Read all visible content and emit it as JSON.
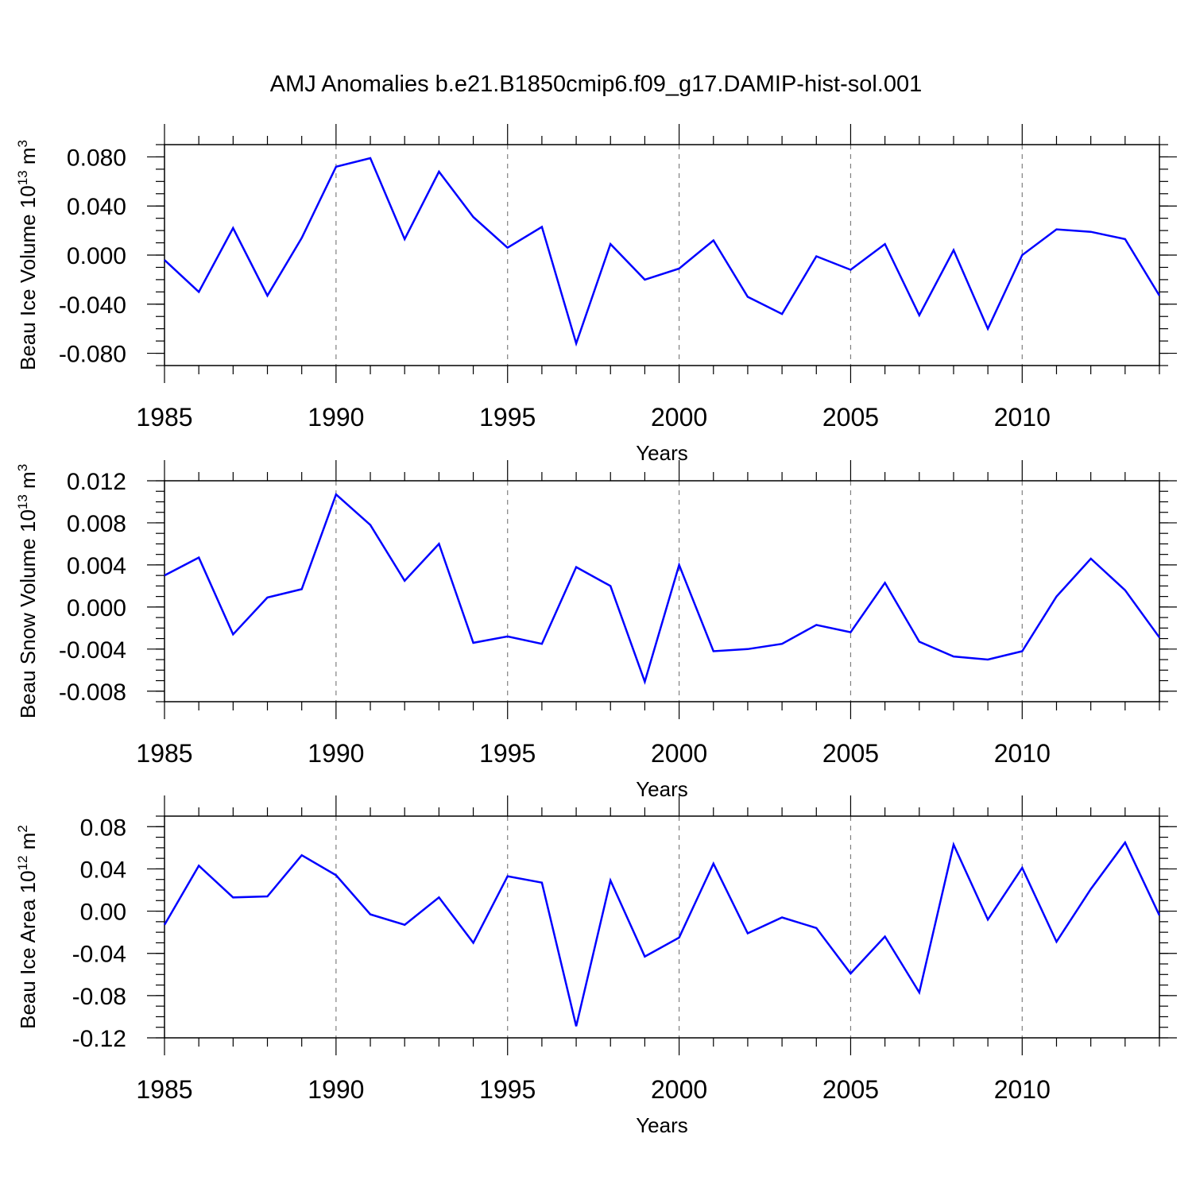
{
  "title": "AMJ Anomalies b.e21.B1850cmip6.f09_g17.DAMIP-hist-sol.001",
  "colors": {
    "line": "#0000ff",
    "axis": "#000000",
    "grid": "#808080"
  },
  "chart_data": [
    {
      "type": "line",
      "ylabel_main": "Beau Ice Volume 10",
      "ylabel_sup": "13",
      "ylabel_unit": " m",
      "ylabel_unit_sup": "3",
      "xlabel": "Years",
      "xlim": [
        1985,
        2014
      ],
      "ylim": [
        -0.09,
        0.09
      ],
      "yticks": [
        -0.08,
        -0.04,
        0.0,
        0.04,
        0.08
      ],
      "ytick_labels": [
        "-0.080",
        "-0.040",
        "0.000",
        "0.040",
        "0.080"
      ],
      "yminor_step": 0.01,
      "xticks": [
        1985,
        1990,
        1995,
        2000,
        2005,
        2010
      ],
      "xtick_labels": [
        "1985",
        "1990",
        "1995",
        "2000",
        "2005",
        "2010"
      ],
      "grid_x": [
        1990,
        1995,
        2000,
        2005,
        2010
      ],
      "x": [
        1985,
        1986,
        1987,
        1988,
        1989,
        1990,
        1991,
        1992,
        1993,
        1994,
        1995,
        1996,
        1997,
        1998,
        1999,
        2000,
        2001,
        2002,
        2003,
        2004,
        2005,
        2006,
        2007,
        2008,
        2009,
        2010,
        2011,
        2012,
        2013,
        2014
      ],
      "series": [
        {
          "name": "Beau Ice Volume",
          "values": [
            -0.004,
            -0.03,
            0.022,
            -0.033,
            0.014,
            0.072,
            0.079,
            0.013,
            0.068,
            0.031,
            0.006,
            0.023,
            -0.072,
            0.009,
            -0.02,
            -0.011,
            0.012,
            -0.034,
            -0.048,
            -0.001,
            -0.012,
            0.009,
            -0.049,
            0.004,
            -0.06,
            0.0,
            0.021,
            0.019,
            0.013,
            -0.033
          ]
        }
      ]
    },
    {
      "type": "line",
      "ylabel_main": "Beau Snow Volume 10",
      "ylabel_sup": "13",
      "ylabel_unit": " m",
      "ylabel_unit_sup": "3",
      "xlabel": "Years",
      "xlim": [
        1985,
        2014
      ],
      "ylim": [
        -0.009,
        0.012
      ],
      "yticks": [
        -0.008,
        -0.004,
        0.0,
        0.004,
        0.008,
        0.012
      ],
      "ytick_labels": [
        "-0.008",
        "-0.004",
        "0.000",
        "0.004",
        "0.008",
        "0.012"
      ],
      "yminor_step": 0.001,
      "xticks": [
        1985,
        1990,
        1995,
        2000,
        2005,
        2010
      ],
      "xtick_labels": [
        "1985",
        "1990",
        "1995",
        "2000",
        "2005",
        "2010"
      ],
      "grid_x": [
        1990,
        1995,
        2000,
        2005,
        2010
      ],
      "x": [
        1985,
        1986,
        1987,
        1988,
        1989,
        1990,
        1991,
        1992,
        1993,
        1994,
        1995,
        1996,
        1997,
        1998,
        1999,
        2000,
        2001,
        2002,
        2003,
        2004,
        2005,
        2006,
        2007,
        2008,
        2009,
        2010,
        2011,
        2012,
        2013,
        2014
      ],
      "series": [
        {
          "name": "Beau Snow Volume",
          "values": [
            0.003,
            0.0047,
            -0.0026,
            0.0009,
            0.0017,
            0.0107,
            0.0078,
            0.0025,
            0.006,
            -0.0034,
            -0.0028,
            -0.0035,
            0.0038,
            0.002,
            -0.0071,
            0.004,
            -0.0042,
            -0.004,
            -0.0035,
            -0.0017,
            -0.0024,
            0.0023,
            -0.0033,
            -0.0047,
            -0.005,
            -0.0042,
            0.001,
            0.0046,
            0.0016,
            -0.0029
          ]
        }
      ]
    },
    {
      "type": "line",
      "ylabel_main": "Beau Ice Area 10",
      "ylabel_sup": "12",
      "ylabel_unit": " m",
      "ylabel_unit_sup": "2",
      "xlabel": "Years",
      "xlim": [
        1985,
        2014
      ],
      "ylim": [
        -0.12,
        0.09
      ],
      "yticks": [
        -0.12,
        -0.08,
        -0.04,
        0.0,
        0.04,
        0.08
      ],
      "ytick_labels": [
        "-0.12",
        "-0.08",
        "-0.04",
        "0.00",
        "0.04",
        "0.08"
      ],
      "yminor_step": 0.01,
      "xticks": [
        1985,
        1990,
        1995,
        2000,
        2005,
        2010
      ],
      "xtick_labels": [
        "1985",
        "1990",
        "1995",
        "2000",
        "2005",
        "2010"
      ],
      "grid_x": [
        1990,
        1995,
        2000,
        2005,
        2010
      ],
      "x": [
        1985,
        1986,
        1987,
        1988,
        1989,
        1990,
        1991,
        1992,
        1993,
        1994,
        1995,
        1996,
        1997,
        1998,
        1999,
        2000,
        2001,
        2002,
        2003,
        2004,
        2005,
        2006,
        2007,
        2008,
        2009,
        2010,
        2011,
        2012,
        2013,
        2014
      ],
      "series": [
        {
          "name": "Beau Ice Area",
          "values": [
            -0.013,
            0.043,
            0.013,
            0.014,
            0.053,
            0.034,
            -0.003,
            -0.013,
            0.013,
            -0.03,
            0.033,
            0.027,
            -0.109,
            0.029,
            -0.043,
            -0.025,
            0.045,
            -0.021,
            -0.006,
            -0.016,
            -0.059,
            -0.024,
            -0.077,
            0.063,
            -0.008,
            0.041,
            -0.029,
            0.021,
            0.065,
            -0.004
          ]
        }
      ]
    }
  ]
}
